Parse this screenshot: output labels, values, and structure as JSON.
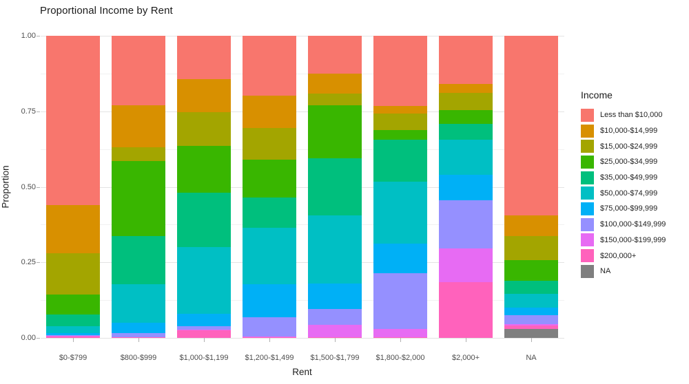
{
  "title": "Proportional Income by Rent",
  "chart_data": {
    "type": "bar",
    "stacked": true,
    "normalized": true,
    "title": "Proportional Income by Rent",
    "xlabel": "Rent",
    "ylabel": "Proportion",
    "ylim": [
      0,
      1
    ],
    "yticks": [
      1,
      0.75,
      0.5,
      0.25,
      0
    ],
    "ytick_labels": [
      "1.00",
      "0.75",
      "0.50",
      "0.25",
      "0.00"
    ],
    "minor_gridlines": [
      0.125,
      0.375,
      0.625,
      0.875
    ],
    "grid": "on",
    "legend_title": "Income",
    "legend_position": "right",
    "stack_order": "first series at top of bar",
    "categories": [
      "$0-$799",
      "$800-$999",
      "$1,000-$1,199",
      "$1,200-$1,499",
      "$1,500-$1,799",
      "$1,800-$2,000",
      "$2,000+",
      "NA"
    ],
    "series": [
      {
        "name": "Less than $10,000",
        "color": "#F8766D",
        "values": [
          0.56,
          0.23,
          0.144,
          0.199,
          0.125,
          0.233,
          0.16,
          0.595
        ]
      },
      {
        "name": "$10,000-$14,999",
        "color": "#D89000",
        "values": [
          0.16,
          0.14,
          0.108,
          0.106,
          0.066,
          0.024,
          0.028,
          0.069
        ]
      },
      {
        "name": "$15,000-$24,999",
        "color": "#A3A500",
        "values": [
          0.137,
          0.045,
          0.113,
          0.104,
          0.04,
          0.056,
          0.058,
          0.079
        ]
      },
      {
        "name": "$25,000-$34,999",
        "color": "#39B600",
        "values": [
          0.066,
          0.249,
          0.154,
          0.126,
          0.174,
          0.03,
          0.046,
          0.069
        ]
      },
      {
        "name": "$35,000-$49,999",
        "color": "#00BF7D",
        "values": [
          0.039,
          0.159,
          0.181,
          0.101,
          0.19,
          0.141,
          0.053,
          0.042
        ]
      },
      {
        "name": "$50,000-$74,999",
        "color": "#00BFC4",
        "values": [
          0.023,
          0.127,
          0.22,
          0.187,
          0.224,
          0.205,
          0.116,
          0.045
        ]
      },
      {
        "name": "$75,000-$99,999",
        "color": "#00B0F6",
        "values": [
          0.005,
          0.033,
          0.041,
          0.109,
          0.085,
          0.096,
          0.083,
          0.027
        ]
      },
      {
        "name": "$100,000-$149,999",
        "color": "#9590FF",
        "values": [
          0.004,
          0.014,
          0.012,
          0.063,
          0.053,
          0.185,
          0.161,
          0.028
        ]
      },
      {
        "name": "$150,000-$199,999",
        "color": "#E76BF3",
        "values": [
          0.001,
          0.001,
          0.002,
          0.002,
          0.04,
          0.028,
          0.11,
          0.006
        ]
      },
      {
        "name": "$200,000+",
        "color": "#FF62BC",
        "values": [
          0.005,
          0.002,
          0.025,
          0.003,
          0.003,
          0.002,
          0.185,
          0.011
        ]
      },
      {
        "name": "NA",
        "color": "#7F7F7F",
        "values": [
          0.0,
          0.0,
          0.0,
          0.0,
          0.0,
          0.0,
          0.0,
          0.029
        ]
      }
    ]
  }
}
